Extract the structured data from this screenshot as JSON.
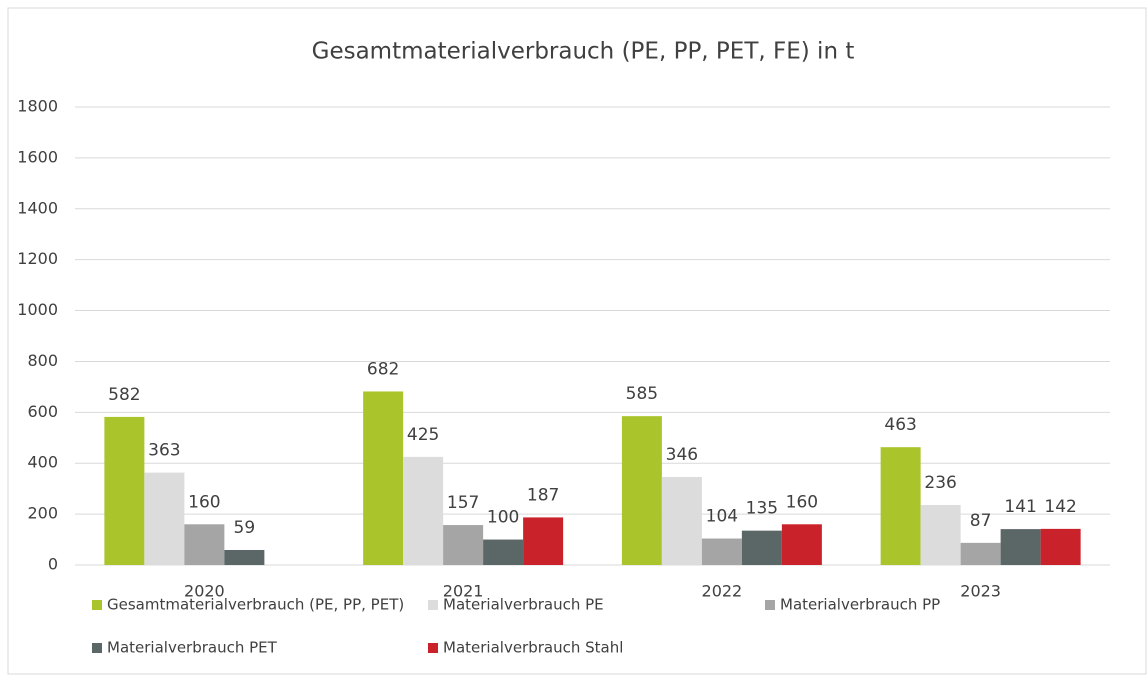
{
  "chart_data": {
    "type": "bar",
    "title": "Gesamtmaterialverbrauch (PE, PP, PET, FE) in t",
    "categories": [
      "2020",
      "2021",
      "2022",
      "2023"
    ],
    "series": [
      {
        "name": "Gesamtmaterialverbrauch (PE, PP, PET)",
        "color": "#a9c52b",
        "values": [
          582,
          682,
          585,
          463
        ]
      },
      {
        "name": "Materialverbrauch PE",
        "color": "#dcdcdc",
        "values": [
          363,
          425,
          346,
          236
        ]
      },
      {
        "name": "Materialverbrauch PP",
        "color": "#a5a5a5",
        "values": [
          160,
          157,
          104,
          87
        ]
      },
      {
        "name": "Materialverbrauch PET",
        "color": "#5b6667",
        "values": [
          59,
          100,
          135,
          141
        ]
      },
      {
        "name": "Materialverbrauch Stahl",
        "color": "#c9222b",
        "values": [
          null,
          187,
          160,
          142
        ]
      }
    ],
    "ylim": [
      0,
      1800
    ],
    "yticks": [
      0,
      200,
      400,
      600,
      800,
      1000,
      1200,
      1400,
      1600,
      1800
    ],
    "grid": true,
    "legend": "bottom"
  }
}
